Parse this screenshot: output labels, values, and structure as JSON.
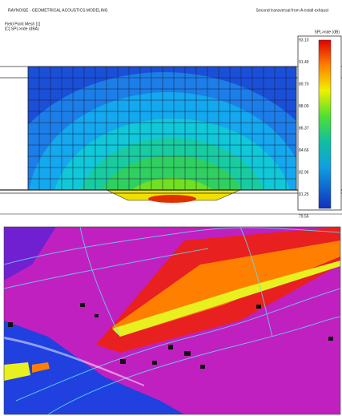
{
  "header": {
    "title": "RAYNOISE - GEOMETRICAL ACOUSTICS MODELING",
    "subtitle": "Second transversal from A estall exhaust"
  },
  "mesh": {
    "name": "Field Point Mesh [1]",
    "quantity": "[C]  SPL>nde (dBA)"
  },
  "legend": {
    "title": "SPL>nde (dB)",
    "labels": [
      "93.10",
      "91.49",
      "89.70",
      "88.00",
      "86.37",
      "84.66",
      "82.96",
      "81.25",
      "79.56"
    ]
  }
}
